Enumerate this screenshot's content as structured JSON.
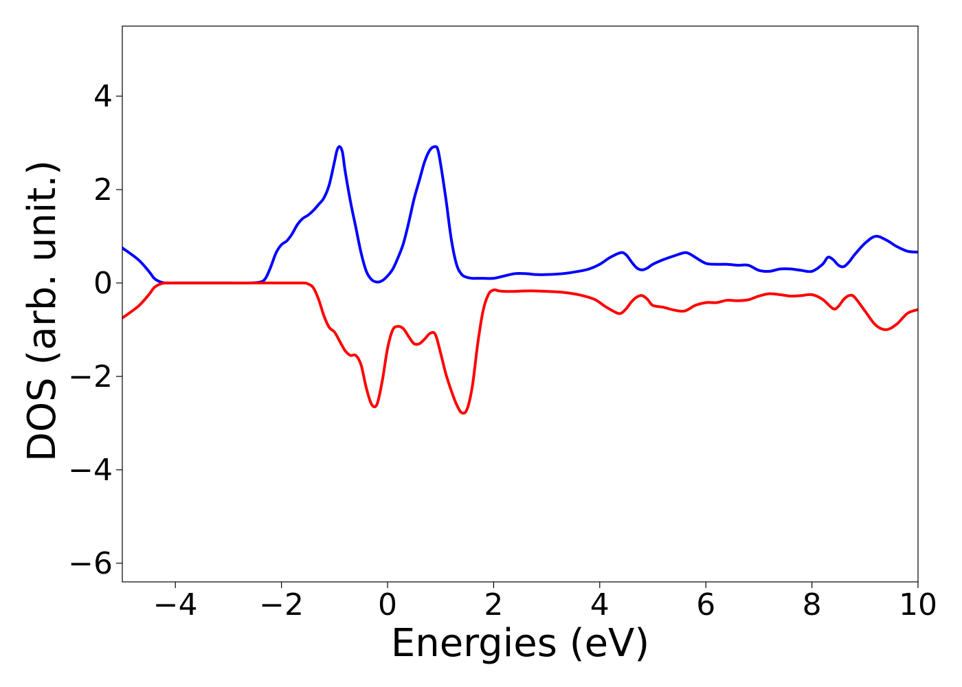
{
  "chart_data": {
    "type": "line",
    "title": "",
    "xlabel": "Energies (eV)",
    "ylabel": "DOS (arb. unit.)",
    "xlim": [
      -5,
      10
    ],
    "ylim": [
      -6.4,
      5.5
    ],
    "xticks": [
      {
        "value": -4,
        "label": "−4"
      },
      {
        "value": -2,
        "label": "−2"
      },
      {
        "value": 0,
        "label": "0"
      },
      {
        "value": 2,
        "label": "2"
      },
      {
        "value": 4,
        "label": "4"
      },
      {
        "value": 6,
        "label": "6"
      },
      {
        "value": 8,
        "label": "8"
      },
      {
        "value": 10,
        "label": "10"
      }
    ],
    "yticks": [
      {
        "value": 4,
        "label": "4"
      },
      {
        "value": 2,
        "label": "2"
      },
      {
        "value": 0,
        "label": "0"
      },
      {
        "value": -2,
        "label": "−2"
      },
      {
        "value": -4,
        "label": "−4"
      },
      {
        "value": -6,
        "label": "−6"
      }
    ],
    "grid": false,
    "legend": "none",
    "series": [
      {
        "color": "#0000ff",
        "x": [
          -5.0,
          -4.7,
          -4.5,
          -4.4,
          -4.3,
          -4.2,
          -4.0,
          -3.0,
          -2.6,
          -2.4,
          -2.3,
          -2.2,
          -2.1,
          -2.0,
          -1.9,
          -1.8,
          -1.7,
          -1.6,
          -1.5,
          -1.4,
          -1.3,
          -1.2,
          -1.1,
          -1.0,
          -0.95,
          -0.9,
          -0.85,
          -0.8,
          -0.7,
          -0.6,
          -0.5,
          -0.4,
          -0.3,
          -0.2,
          -0.1,
          0.0,
          0.1,
          0.2,
          0.3,
          0.4,
          0.5,
          0.6,
          0.7,
          0.8,
          0.9,
          0.95,
          1.0,
          1.1,
          1.2,
          1.3,
          1.4,
          1.5,
          1.6,
          1.7,
          1.8,
          2.0,
          2.2,
          2.4,
          2.6,
          2.8,
          3.0,
          3.3,
          3.6,
          3.8,
          4.0,
          4.2,
          4.4,
          4.5,
          4.6,
          4.7,
          4.8,
          4.9,
          5.0,
          5.2,
          5.4,
          5.6,
          5.7,
          5.8,
          6.0,
          6.2,
          6.4,
          6.6,
          6.8,
          7.0,
          7.2,
          7.4,
          7.6,
          7.8,
          8.0,
          8.2,
          8.3,
          8.4,
          8.5,
          8.6,
          8.7,
          8.8,
          9.0,
          9.2,
          9.4,
          9.6,
          9.8,
          10.0
        ],
        "values": [
          0.75,
          0.5,
          0.25,
          0.1,
          0.03,
          0.0,
          0.0,
          0.0,
          0.0,
          0.02,
          0.1,
          0.35,
          0.65,
          0.82,
          0.9,
          1.05,
          1.25,
          1.38,
          1.45,
          1.55,
          1.68,
          1.82,
          2.1,
          2.6,
          2.85,
          2.92,
          2.8,
          2.4,
          1.75,
          1.2,
          0.65,
          0.25,
          0.07,
          0.02,
          0.05,
          0.15,
          0.3,
          0.55,
          0.85,
          1.3,
          1.8,
          2.2,
          2.6,
          2.85,
          2.92,
          2.85,
          2.55,
          1.8,
          0.95,
          0.4,
          0.18,
          0.12,
          0.1,
          0.1,
          0.1,
          0.1,
          0.15,
          0.2,
          0.2,
          0.18,
          0.18,
          0.2,
          0.25,
          0.3,
          0.4,
          0.55,
          0.65,
          0.6,
          0.45,
          0.32,
          0.28,
          0.32,
          0.4,
          0.5,
          0.58,
          0.65,
          0.62,
          0.55,
          0.42,
          0.4,
          0.4,
          0.38,
          0.38,
          0.27,
          0.25,
          0.3,
          0.3,
          0.27,
          0.25,
          0.4,
          0.55,
          0.5,
          0.38,
          0.35,
          0.45,
          0.6,
          0.85,
          1.0,
          0.92,
          0.78,
          0.68,
          0.66
        ]
      },
      {
        "color": "#ff0000",
        "x": [
          -5.0,
          -4.7,
          -4.5,
          -4.4,
          -4.3,
          -4.2,
          -4.0,
          -3.0,
          -2.0,
          -1.6,
          -1.5,
          -1.4,
          -1.3,
          -1.2,
          -1.1,
          -1.0,
          -0.9,
          -0.8,
          -0.7,
          -0.6,
          -0.5,
          -0.4,
          -0.3,
          -0.2,
          -0.1,
          0.0,
          0.1,
          0.2,
          0.3,
          0.4,
          0.5,
          0.6,
          0.7,
          0.8,
          0.9,
          1.0,
          1.1,
          1.2,
          1.3,
          1.4,
          1.5,
          1.6,
          1.7,
          1.8,
          1.9,
          2.0,
          2.1,
          2.2,
          2.4,
          2.6,
          2.8,
          3.0,
          3.3,
          3.6,
          3.9,
          4.1,
          4.3,
          4.4,
          4.5,
          4.6,
          4.7,
          4.8,
          4.9,
          5.0,
          5.2,
          5.4,
          5.6,
          5.8,
          6.0,
          6.2,
          6.4,
          6.6,
          6.8,
          7.0,
          7.2,
          7.4,
          7.6,
          7.8,
          8.0,
          8.2,
          8.4,
          8.5,
          8.6,
          8.7,
          8.8,
          9.0,
          9.2,
          9.4,
          9.6,
          9.8,
          10.0
        ],
        "values": [
          -0.75,
          -0.5,
          -0.25,
          -0.1,
          -0.03,
          0.0,
          0.0,
          0.0,
          0.0,
          0.0,
          -0.02,
          -0.1,
          -0.35,
          -0.7,
          -0.95,
          -1.05,
          -1.25,
          -1.45,
          -1.55,
          -1.55,
          -1.75,
          -2.25,
          -2.6,
          -2.6,
          -2.1,
          -1.4,
          -1.0,
          -0.93,
          -0.98,
          -1.15,
          -1.3,
          -1.3,
          -1.2,
          -1.08,
          -1.1,
          -1.5,
          -1.95,
          -2.3,
          -2.6,
          -2.78,
          -2.7,
          -2.2,
          -1.3,
          -0.6,
          -0.25,
          -0.15,
          -0.17,
          -0.18,
          -0.18,
          -0.17,
          -0.17,
          -0.18,
          -0.2,
          -0.25,
          -0.35,
          -0.5,
          -0.63,
          -0.65,
          -0.55,
          -0.4,
          -0.3,
          -0.27,
          -0.35,
          -0.48,
          -0.52,
          -0.58,
          -0.6,
          -0.48,
          -0.42,
          -0.42,
          -0.37,
          -0.38,
          -0.36,
          -0.28,
          -0.23,
          -0.25,
          -0.28,
          -0.27,
          -0.25,
          -0.35,
          -0.55,
          -0.5,
          -0.35,
          -0.27,
          -0.3,
          -0.6,
          -0.9,
          -1.0,
          -0.88,
          -0.65,
          -0.57
        ]
      }
    ]
  }
}
